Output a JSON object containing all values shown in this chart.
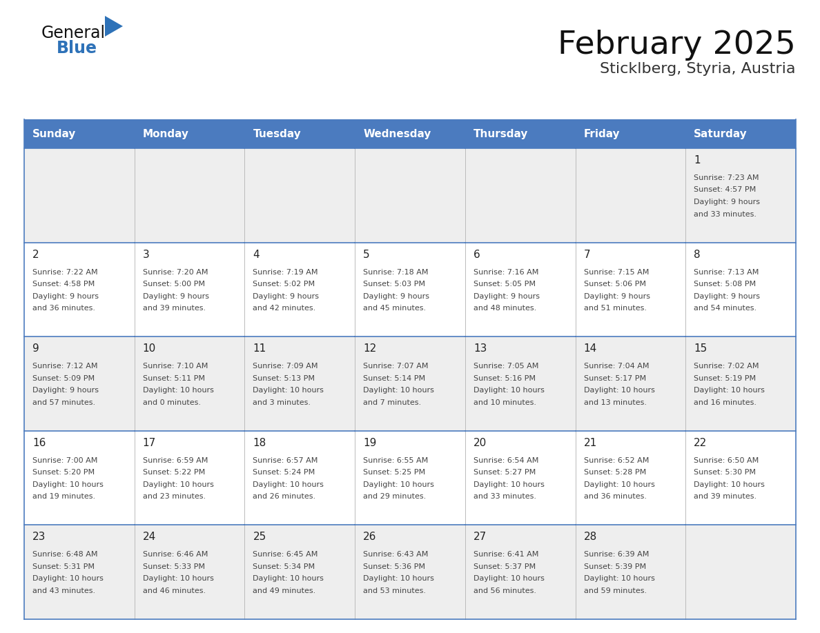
{
  "title": "February 2025",
  "subtitle": "Sticklberg, Styria, Austria",
  "days_of_week": [
    "Sunday",
    "Monday",
    "Tuesday",
    "Wednesday",
    "Thursday",
    "Friday",
    "Saturday"
  ],
  "header_bg": "#4b7bbf",
  "header_text": "#FFFFFF",
  "cell_bg_odd": "#eeeeee",
  "cell_bg_even": "#FFFFFF",
  "border_color": "#4b7bbf",
  "text_color": "#444444",
  "day_number_color": "#222222",
  "title_color": "#111111",
  "subtitle_color": "#333333",
  "logo_color_general": "#111111",
  "logo_color_blue": "#2e72b8",
  "logo_triangle_color": "#2e72b8",
  "calendar_data": [
    [
      {
        "day": null,
        "info": ""
      },
      {
        "day": null,
        "info": ""
      },
      {
        "day": null,
        "info": ""
      },
      {
        "day": null,
        "info": ""
      },
      {
        "day": null,
        "info": ""
      },
      {
        "day": null,
        "info": ""
      },
      {
        "day": 1,
        "info": "Sunrise: 7:23 AM\nSunset: 4:57 PM\nDaylight: 9 hours\nand 33 minutes."
      }
    ],
    [
      {
        "day": 2,
        "info": "Sunrise: 7:22 AM\nSunset: 4:58 PM\nDaylight: 9 hours\nand 36 minutes."
      },
      {
        "day": 3,
        "info": "Sunrise: 7:20 AM\nSunset: 5:00 PM\nDaylight: 9 hours\nand 39 minutes."
      },
      {
        "day": 4,
        "info": "Sunrise: 7:19 AM\nSunset: 5:02 PM\nDaylight: 9 hours\nand 42 minutes."
      },
      {
        "day": 5,
        "info": "Sunrise: 7:18 AM\nSunset: 5:03 PM\nDaylight: 9 hours\nand 45 minutes."
      },
      {
        "day": 6,
        "info": "Sunrise: 7:16 AM\nSunset: 5:05 PM\nDaylight: 9 hours\nand 48 minutes."
      },
      {
        "day": 7,
        "info": "Sunrise: 7:15 AM\nSunset: 5:06 PM\nDaylight: 9 hours\nand 51 minutes."
      },
      {
        "day": 8,
        "info": "Sunrise: 7:13 AM\nSunset: 5:08 PM\nDaylight: 9 hours\nand 54 minutes."
      }
    ],
    [
      {
        "day": 9,
        "info": "Sunrise: 7:12 AM\nSunset: 5:09 PM\nDaylight: 9 hours\nand 57 minutes."
      },
      {
        "day": 10,
        "info": "Sunrise: 7:10 AM\nSunset: 5:11 PM\nDaylight: 10 hours\nand 0 minutes."
      },
      {
        "day": 11,
        "info": "Sunrise: 7:09 AM\nSunset: 5:13 PM\nDaylight: 10 hours\nand 3 minutes."
      },
      {
        "day": 12,
        "info": "Sunrise: 7:07 AM\nSunset: 5:14 PM\nDaylight: 10 hours\nand 7 minutes."
      },
      {
        "day": 13,
        "info": "Sunrise: 7:05 AM\nSunset: 5:16 PM\nDaylight: 10 hours\nand 10 minutes."
      },
      {
        "day": 14,
        "info": "Sunrise: 7:04 AM\nSunset: 5:17 PM\nDaylight: 10 hours\nand 13 minutes."
      },
      {
        "day": 15,
        "info": "Sunrise: 7:02 AM\nSunset: 5:19 PM\nDaylight: 10 hours\nand 16 minutes."
      }
    ],
    [
      {
        "day": 16,
        "info": "Sunrise: 7:00 AM\nSunset: 5:20 PM\nDaylight: 10 hours\nand 19 minutes."
      },
      {
        "day": 17,
        "info": "Sunrise: 6:59 AM\nSunset: 5:22 PM\nDaylight: 10 hours\nand 23 minutes."
      },
      {
        "day": 18,
        "info": "Sunrise: 6:57 AM\nSunset: 5:24 PM\nDaylight: 10 hours\nand 26 minutes."
      },
      {
        "day": 19,
        "info": "Sunrise: 6:55 AM\nSunset: 5:25 PM\nDaylight: 10 hours\nand 29 minutes."
      },
      {
        "day": 20,
        "info": "Sunrise: 6:54 AM\nSunset: 5:27 PM\nDaylight: 10 hours\nand 33 minutes."
      },
      {
        "day": 21,
        "info": "Sunrise: 6:52 AM\nSunset: 5:28 PM\nDaylight: 10 hours\nand 36 minutes."
      },
      {
        "day": 22,
        "info": "Sunrise: 6:50 AM\nSunset: 5:30 PM\nDaylight: 10 hours\nand 39 minutes."
      }
    ],
    [
      {
        "day": 23,
        "info": "Sunrise: 6:48 AM\nSunset: 5:31 PM\nDaylight: 10 hours\nand 43 minutes."
      },
      {
        "day": 24,
        "info": "Sunrise: 6:46 AM\nSunset: 5:33 PM\nDaylight: 10 hours\nand 46 minutes."
      },
      {
        "day": 25,
        "info": "Sunrise: 6:45 AM\nSunset: 5:34 PM\nDaylight: 10 hours\nand 49 minutes."
      },
      {
        "day": 26,
        "info": "Sunrise: 6:43 AM\nSunset: 5:36 PM\nDaylight: 10 hours\nand 53 minutes."
      },
      {
        "day": 27,
        "info": "Sunrise: 6:41 AM\nSunset: 5:37 PM\nDaylight: 10 hours\nand 56 minutes."
      },
      {
        "day": 28,
        "info": "Sunrise: 6:39 AM\nSunset: 5:39 PM\nDaylight: 10 hours\nand 59 minutes."
      },
      {
        "day": null,
        "info": ""
      }
    ]
  ]
}
